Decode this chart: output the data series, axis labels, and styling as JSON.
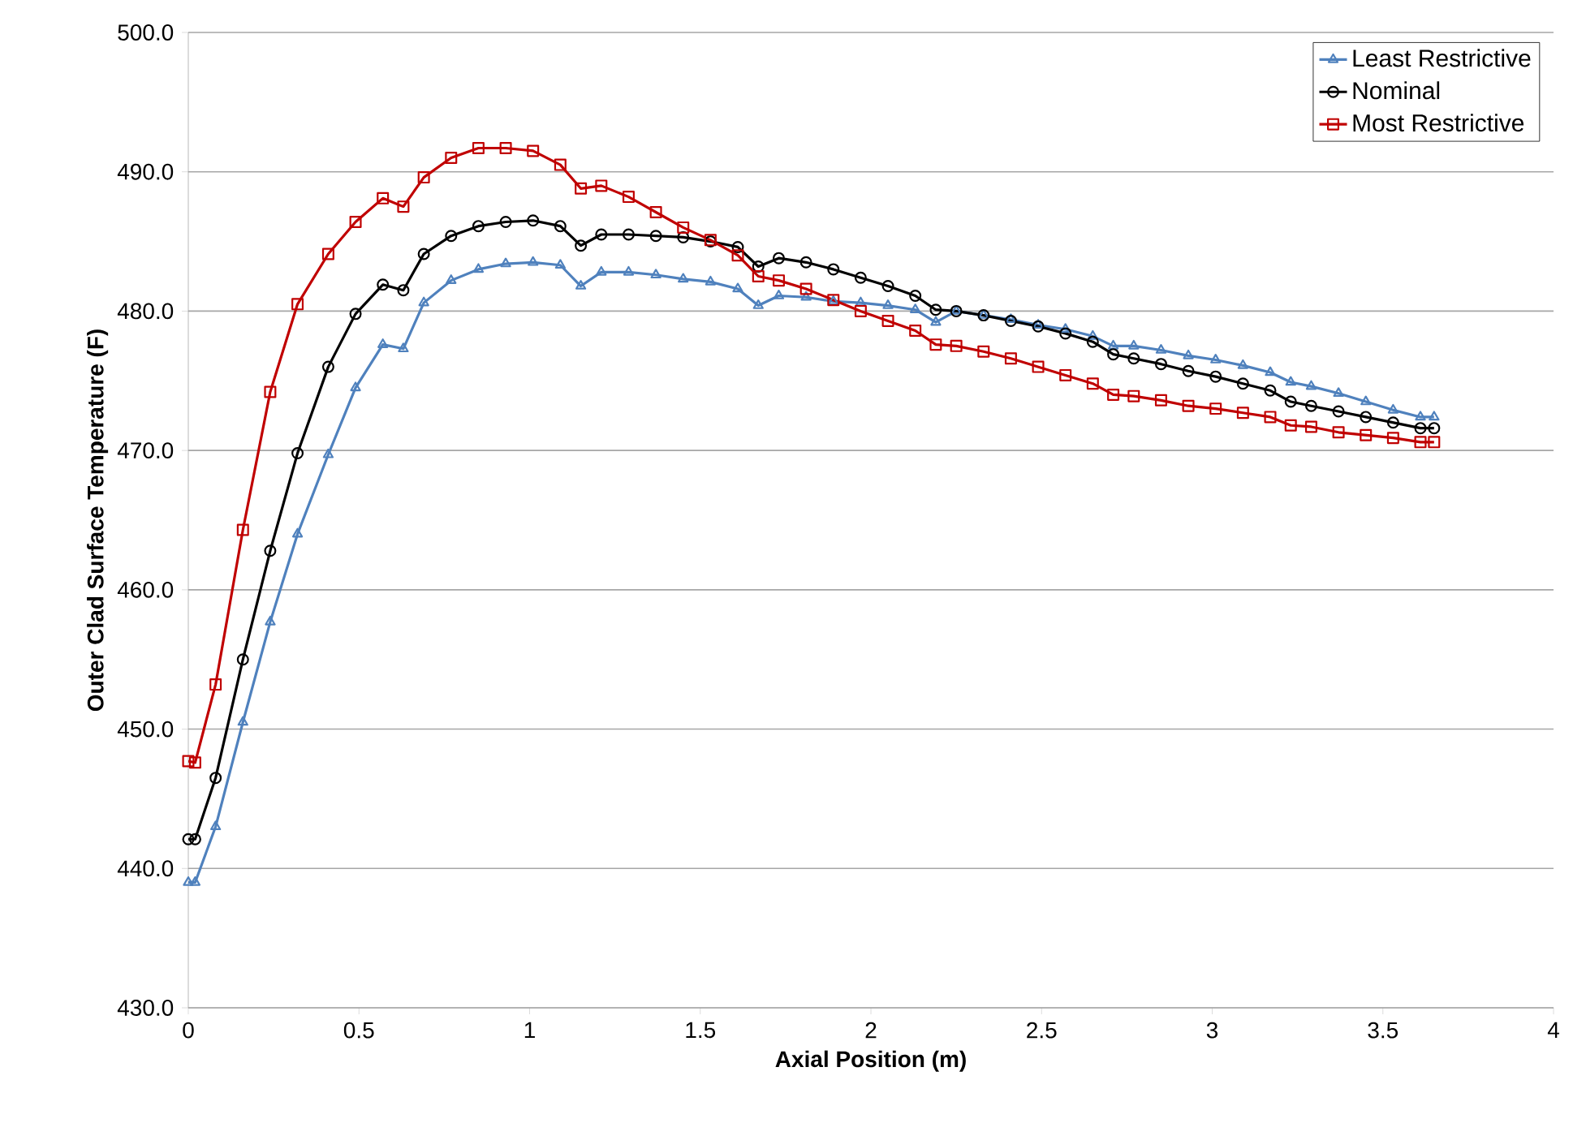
{
  "chart_data": {
    "type": "line",
    "xlabel": "Axial Position (m)",
    "ylabel": "Outer Clad Surface Temperature (F)",
    "x": [
      0,
      0.02,
      0.08,
      0.16,
      0.24,
      0.32,
      0.41,
      0.49,
      0.57,
      0.63,
      0.69,
      0.77,
      0.85,
      0.93,
      1.01,
      1.09,
      1.15,
      1.21,
      1.29,
      1.37,
      1.45,
      1.53,
      1.61,
      1.67,
      1.73,
      1.81,
      1.89,
      1.97,
      2.05,
      2.13,
      2.19,
      2.25,
      2.33,
      2.41,
      2.49,
      2.57,
      2.65,
      2.71,
      2.77,
      2.85,
      2.93,
      3.01,
      3.09,
      3.17,
      3.23,
      3.29,
      3.37,
      3.45,
      3.53,
      3.61,
      3.65
    ],
    "series": [
      {
        "name": "Least Restrictive",
        "color": "#4f81bd",
        "marker": "triangle",
        "values": [
          439.0,
          439.0,
          443.0,
          450.5,
          457.7,
          464.0,
          469.7,
          474.5,
          477.6,
          477.3,
          480.6,
          482.2,
          483.0,
          483.4,
          483.5,
          483.3,
          481.8,
          482.8,
          482.8,
          482.6,
          482.3,
          482.1,
          481.6,
          480.4,
          481.1,
          481.0,
          480.7,
          480.6,
          480.4,
          480.1,
          479.2,
          480.0,
          479.7,
          479.4,
          479.0,
          478.7,
          478.2,
          477.5,
          477.5,
          477.2,
          476.8,
          476.5,
          476.1,
          475.6,
          474.9,
          474.6,
          474.1,
          473.5,
          472.9,
          472.4,
          472.4
        ]
      },
      {
        "name": "Nominal",
        "color": "#000000",
        "marker": "circle",
        "values": [
          442.1,
          442.1,
          446.5,
          455.0,
          462.8,
          469.8,
          476.0,
          479.8,
          481.9,
          481.5,
          484.1,
          485.4,
          486.1,
          486.4,
          486.5,
          486.1,
          484.7,
          485.5,
          485.5,
          485.4,
          485.3,
          485.0,
          484.6,
          483.2,
          483.8,
          483.5,
          483.0,
          482.4,
          481.8,
          481.1,
          480.1,
          480.0,
          479.7,
          479.3,
          478.9,
          478.4,
          477.8,
          476.9,
          476.6,
          476.2,
          475.7,
          475.3,
          474.8,
          474.3,
          473.5,
          473.2,
          472.8,
          472.4,
          472.0,
          471.6,
          471.6
        ]
      },
      {
        "name": "Most Restrictive",
        "color": "#c00000",
        "marker": "square",
        "values": [
          447.7,
          447.6,
          453.2,
          464.3,
          474.2,
          480.5,
          484.1,
          486.4,
          488.1,
          487.5,
          489.6,
          491.0,
          491.7,
          491.7,
          491.5,
          490.5,
          488.8,
          489.0,
          488.2,
          487.1,
          486.0,
          485.1,
          484.0,
          482.5,
          482.2,
          481.6,
          480.8,
          480.0,
          479.3,
          478.6,
          477.6,
          477.5,
          477.1,
          476.6,
          476.0,
          475.4,
          474.8,
          474.0,
          473.9,
          473.6,
          473.2,
          473.0,
          472.7,
          472.4,
          471.8,
          471.7,
          471.3,
          471.1,
          470.9,
          470.6,
          470.6
        ]
      }
    ],
    "xlim": [
      0,
      4
    ],
    "xticks": [
      0,
      0.5,
      1,
      1.5,
      2,
      2.5,
      3,
      3.5,
      4
    ],
    "ylim": [
      430,
      500
    ],
    "yticks": [
      {
        "value": 430,
        "label": "430.0"
      },
      {
        "value": 440,
        "label": "440.0"
      },
      {
        "value": 450,
        "label": "450.0"
      },
      {
        "value": 460,
        "label": "460.0"
      },
      {
        "value": 470,
        "label": "470.0"
      },
      {
        "value": 480,
        "label": "480.0"
      },
      {
        "value": 490,
        "label": "490.0"
      },
      {
        "value": 500,
        "label": "500.0"
      }
    ],
    "grid": "y",
    "legend": "top right",
    "line_style": "solid"
  }
}
